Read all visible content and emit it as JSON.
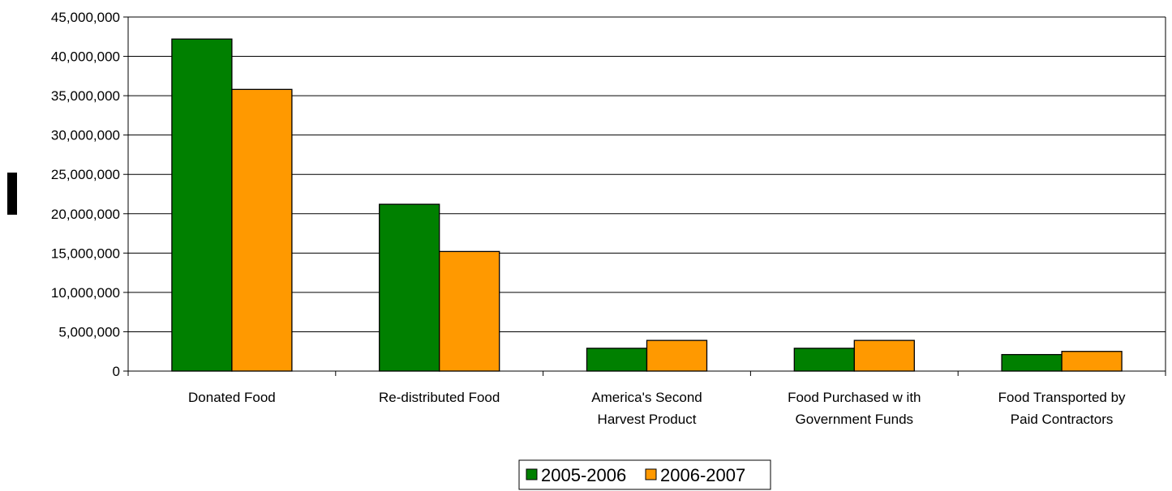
{
  "chart_data": {
    "type": "bar",
    "categories": [
      [
        "Donated Food"
      ],
      [
        "Re-distributed Food"
      ],
      [
        "America's Second",
        "Harvest Product"
      ],
      [
        "Food Purchased w ith",
        "Government Funds"
      ],
      [
        "Food Transported by",
        "Paid Contractors"
      ]
    ],
    "series": [
      {
        "name": "2005-2006",
        "color": "#008000",
        "values": [
          42200000,
          21200000,
          2900000,
          2900000,
          2100000
        ]
      },
      {
        "name": "2006-2007",
        "color": "#FF9900",
        "values": [
          35800000,
          15200000,
          3900000,
          3900000,
          2500000
        ]
      }
    ],
    "ylim": [
      0,
      45000000
    ],
    "yticks": [
      "0",
      "5,000,000",
      "10,000,000",
      "15,000,000",
      "20,000,000",
      "25,000,000",
      "30,000,000",
      "35,000,000",
      "40,000,000",
      "45,000,000"
    ],
    "ytick_values": [
      0,
      5000000,
      10000000,
      15000000,
      20000000,
      25000000,
      30000000,
      35000000,
      40000000,
      45000000
    ],
    "grid": true,
    "legend_position": "bottom"
  }
}
